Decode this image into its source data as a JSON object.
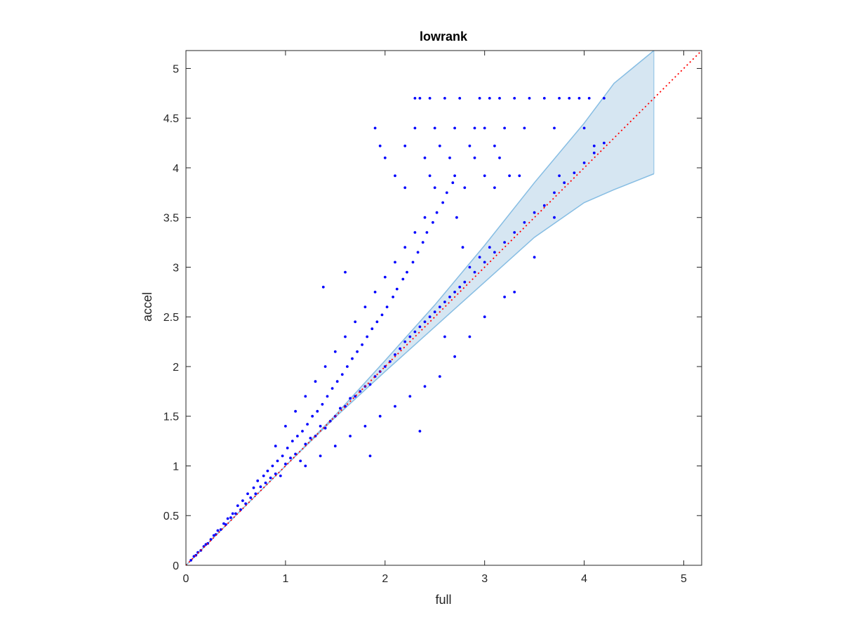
{
  "chart_data": {
    "type": "scatter",
    "title": "lowrank",
    "xlabel": "full",
    "ylabel": "accel",
    "xlim": [
      0,
      5.18
    ],
    "ylim": [
      0,
      5.18
    ],
    "xticks": [
      0,
      1,
      2,
      3,
      4,
      5
    ],
    "xtick_labels": [
      "0",
      "1",
      "2",
      "3",
      "4",
      "5"
    ],
    "yticks": [
      0,
      0.5,
      1,
      1.5,
      2,
      2.5,
      3,
      3.5,
      4,
      4.5,
      5
    ],
    "ytick_labels": [
      "0",
      "0.5",
      "1",
      "1.5",
      "2",
      "2.5",
      "3",
      "3.5",
      "4",
      "4.5",
      "5"
    ],
    "grid": false,
    "colors": {
      "points": "#0000ff",
      "band_fill": "#d6e6f2",
      "band_edge": "#86bde3",
      "reference_line": "#ff0000",
      "axes": "#262626"
    },
    "reference_line": {
      "style": "dotted",
      "from": [
        0,
        0
      ],
      "to": [
        5.18,
        5.18
      ]
    },
    "confidence_band": {
      "x": [
        0,
        0.5,
        1,
        1.5,
        2,
        2.5,
        3,
        3.5,
        4,
        4.3,
        4.7
      ],
      "upper": [
        0,
        0.5,
        1.0,
        1.51,
        2.06,
        2.62,
        3.22,
        3.85,
        4.45,
        4.85,
        5.18
      ],
      "lower": [
        0,
        0.5,
        1.0,
        1.49,
        1.95,
        2.4,
        2.85,
        3.3,
        3.65,
        3.78,
        3.94
      ]
    },
    "series": [
      {
        "points": [
          [
            0.05,
            0.05
          ],
          [
            0.08,
            0.09
          ],
          [
            0.1,
            0.1
          ],
          [
            0.12,
            0.13
          ],
          [
            0.15,
            0.15
          ],
          [
            0.18,
            0.19
          ],
          [
            0.2,
            0.21
          ],
          [
            0.22,
            0.22
          ],
          [
            0.25,
            0.26
          ],
          [
            0.28,
            0.3
          ],
          [
            0.3,
            0.31
          ],
          [
            0.32,
            0.35
          ],
          [
            0.35,
            0.36
          ],
          [
            0.38,
            0.42
          ],
          [
            0.4,
            0.41
          ],
          [
            0.42,
            0.47
          ],
          [
            0.45,
            0.48
          ],
          [
            0.47,
            0.52
          ],
          [
            0.5,
            0.52
          ],
          [
            0.52,
            0.6
          ],
          [
            0.55,
            0.56
          ],
          [
            0.57,
            0.65
          ],
          [
            0.6,
            0.62
          ],
          [
            0.62,
            0.72
          ],
          [
            0.65,
            0.68
          ],
          [
            0.68,
            0.78
          ],
          [
            0.7,
            0.72
          ],
          [
            0.72,
            0.85
          ],
          [
            0.75,
            0.79
          ],
          [
            0.78,
            0.9
          ],
          [
            0.8,
            0.83
          ],
          [
            0.82,
            0.95
          ],
          [
            0.85,
            0.88
          ],
          [
            0.87,
            1.0
          ],
          [
            0.9,
            0.92
          ],
          [
            0.92,
            1.05
          ],
          [
            0.95,
            0.9
          ],
          [
            0.97,
            1.1
          ],
          [
            1.0,
            1.02
          ],
          [
            1.02,
            1.18
          ],
          [
            1.05,
            1.08
          ],
          [
            1.07,
            1.25
          ],
          [
            1.1,
            1.12
          ],
          [
            1.12,
            1.3
          ],
          [
            1.15,
            1.05
          ],
          [
            1.17,
            1.35
          ],
          [
            1.2,
            1.22
          ],
          [
            1.22,
            1.42
          ],
          [
            1.25,
            1.28
          ],
          [
            1.27,
            1.5
          ],
          [
            1.3,
            1.3
          ],
          [
            1.32,
            1.55
          ],
          [
            1.35,
            1.4
          ],
          [
            1.37,
            1.62
          ],
          [
            1.4,
            1.38
          ],
          [
            1.42,
            1.7
          ],
          [
            1.45,
            1.45
          ],
          [
            1.47,
            1.78
          ],
          [
            1.5,
            1.5
          ],
          [
            1.52,
            1.85
          ],
          [
            1.55,
            1.58
          ],
          [
            1.57,
            1.92
          ],
          [
            1.6,
            1.6
          ],
          [
            1.62,
            2.0
          ],
          [
            1.65,
            1.68
          ],
          [
            1.67,
            2.08
          ],
          [
            1.7,
            1.7
          ],
          [
            1.72,
            2.15
          ],
          [
            1.75,
            1.75
          ],
          [
            1.77,
            2.22
          ],
          [
            1.8,
            1.8
          ],
          [
            1.82,
            2.3
          ],
          [
            1.85,
            1.82
          ],
          [
            1.87,
            2.38
          ],
          [
            1.9,
            1.9
          ],
          [
            1.92,
            2.45
          ],
          [
            1.95,
            1.95
          ],
          [
            1.97,
            2.52
          ],
          [
            2.0,
            2.0
          ],
          [
            2.02,
            2.6
          ],
          [
            2.05,
            2.05
          ],
          [
            2.08,
            2.7
          ],
          [
            2.1,
            2.12
          ],
          [
            2.12,
            2.78
          ],
          [
            2.15,
            2.18
          ],
          [
            2.18,
            2.88
          ],
          [
            2.2,
            2.25
          ],
          [
            2.22,
            2.95
          ],
          [
            2.25,
            2.3
          ],
          [
            2.28,
            3.05
          ],
          [
            2.3,
            2.35
          ],
          [
            2.33,
            3.15
          ],
          [
            2.35,
            2.4
          ],
          [
            2.38,
            3.25
          ],
          [
            2.4,
            2.45
          ],
          [
            2.42,
            3.35
          ],
          [
            2.45,
            2.5
          ],
          [
            2.48,
            3.45
          ],
          [
            2.5,
            2.55
          ],
          [
            2.52,
            3.55
          ],
          [
            2.55,
            2.6
          ],
          [
            2.58,
            3.65
          ],
          [
            2.6,
            2.65
          ],
          [
            2.62,
            3.75
          ],
          [
            2.65,
            2.7
          ],
          [
            2.68,
            3.85
          ],
          [
            2.7,
            2.75
          ],
          [
            2.72,
            3.5
          ],
          [
            2.75,
            2.8
          ],
          [
            2.78,
            3.2
          ],
          [
            2.8,
            2.85
          ],
          [
            2.85,
            3.0
          ],
          [
            2.9,
            2.95
          ],
          [
            2.95,
            3.1
          ],
          [
            3.0,
            3.05
          ],
          [
            3.05,
            3.2
          ],
          [
            3.1,
            3.15
          ],
          [
            3.2,
            3.25
          ],
          [
            3.3,
            3.35
          ],
          [
            3.4,
            3.45
          ],
          [
            3.5,
            3.55
          ],
          [
            3.6,
            3.62
          ],
          [
            3.7,
            3.75
          ],
          [
            3.8,
            3.85
          ],
          [
            3.9,
            3.95
          ],
          [
            4.0,
            4.05
          ],
          [
            4.1,
            4.15
          ],
          [
            4.2,
            4.25
          ],
          [
            0.9,
            1.2
          ],
          [
            1.0,
            1.4
          ],
          [
            1.1,
            1.55
          ],
          [
            1.2,
            1.7
          ],
          [
            1.3,
            1.85
          ],
          [
            1.4,
            2.0
          ],
          [
            1.5,
            2.15
          ],
          [
            1.6,
            2.3
          ],
          [
            1.7,
            2.45
          ],
          [
            1.8,
            2.6
          ],
          [
            1.9,
            2.75
          ],
          [
            2.0,
            2.9
          ],
          [
            2.1,
            3.05
          ],
          [
            2.2,
            3.2
          ],
          [
            2.3,
            3.35
          ],
          [
            2.4,
            3.5
          ],
          [
            1.2,
            1.0
          ],
          [
            1.35,
            1.1
          ],
          [
            1.5,
            1.2
          ],
          [
            1.65,
            1.3
          ],
          [
            1.8,
            1.4
          ],
          [
            1.95,
            1.5
          ],
          [
            2.1,
            1.6
          ],
          [
            2.25,
            1.7
          ],
          [
            2.4,
            1.8
          ],
          [
            2.55,
            1.9
          ],
          [
            2.7,
            2.1
          ],
          [
            2.85,
            2.3
          ],
          [
            3.0,
            2.5
          ],
          [
            3.2,
            2.7
          ],
          [
            3.5,
            3.1
          ],
          [
            3.7,
            3.5
          ],
          [
            1.38,
            2.8
          ],
          [
            1.6,
            2.95
          ],
          [
            2.35,
            1.35
          ],
          [
            1.85,
            1.1
          ],
          [
            2.6,
            2.3
          ],
          [
            3.3,
            2.75
          ],
          [
            2.3,
            4.7
          ],
          [
            2.35,
            4.7
          ],
          [
            2.45,
            4.7
          ],
          [
            2.6,
            4.7
          ],
          [
            2.75,
            4.7
          ],
          [
            2.95,
            4.7
          ],
          [
            3.05,
            4.7
          ],
          [
            3.15,
            4.7
          ],
          [
            3.3,
            4.7
          ],
          [
            3.45,
            4.7
          ],
          [
            3.6,
            4.7
          ],
          [
            3.75,
            4.7
          ],
          [
            3.85,
            4.7
          ],
          [
            3.95,
            4.7
          ],
          [
            4.05,
            4.7
          ],
          [
            4.2,
            4.7
          ],
          [
            1.9,
            4.4
          ],
          [
            2.3,
            4.4
          ],
          [
            2.5,
            4.4
          ],
          [
            2.7,
            4.4
          ],
          [
            2.9,
            4.4
          ],
          [
            3.0,
            4.4
          ],
          [
            3.2,
            4.4
          ],
          [
            3.4,
            4.4
          ],
          [
            3.7,
            4.4
          ],
          [
            4.0,
            4.4
          ],
          [
            1.95,
            4.22
          ],
          [
            2.2,
            4.22
          ],
          [
            2.55,
            4.22
          ],
          [
            2.85,
            4.22
          ],
          [
            3.1,
            4.22
          ],
          [
            4.1,
            4.22
          ],
          [
            2.0,
            4.1
          ],
          [
            2.4,
            4.1
          ],
          [
            2.65,
            4.1
          ],
          [
            2.9,
            4.1
          ],
          [
            3.15,
            4.1
          ],
          [
            2.1,
            3.92
          ],
          [
            2.45,
            3.92
          ],
          [
            2.7,
            3.92
          ],
          [
            3.0,
            3.92
          ],
          [
            3.25,
            3.92
          ],
          [
            3.35,
            3.92
          ],
          [
            3.75,
            3.92
          ],
          [
            2.2,
            3.8
          ],
          [
            2.5,
            3.8
          ],
          [
            2.8,
            3.8
          ],
          [
            3.1,
            3.8
          ]
        ]
      }
    ]
  }
}
